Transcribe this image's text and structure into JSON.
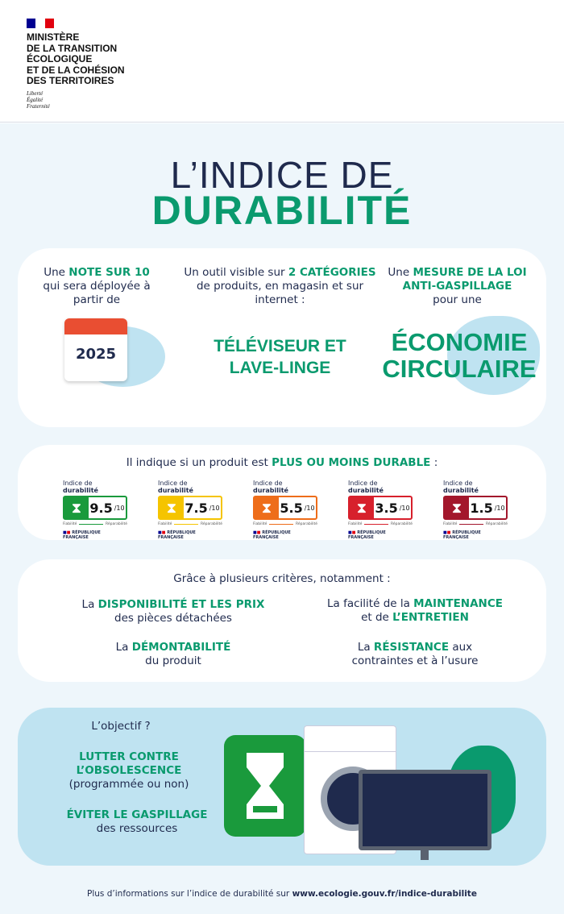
{
  "header": {
    "flag_colors": [
      "#000091",
      "#ffffff",
      "#e1000f"
    ],
    "ministry": [
      "MINISTÈRE",
      "DE LA TRANSITION",
      "ÉCOLOGIQUE",
      "ET DE LA COHÉSION",
      "DES TERRITOIRES"
    ],
    "motto": [
      "Liberté",
      "Égalité",
      "Fraternité"
    ]
  },
  "title": {
    "line1": "L’INDICE DE",
    "line2": "DURABILITÉ"
  },
  "card1": {
    "col1": {
      "pre": "Une ",
      "bold": "NOTE SUR 10",
      "rest": "qui sera déployée à partir de",
      "year": "2025"
    },
    "col2": {
      "pre": "Un outil visible sur ",
      "bold": "2 CATÉGORIES",
      "rest": "de produits, en magasin et sur internet :",
      "big1": "TÉLÉVISEUR ET",
      "big2": "LAVE-LINGE"
    },
    "col3": {
      "pre": "Une ",
      "bold": "MESURE DE LA LOI ANTI-GASPILLAGE",
      "rest": "pour une",
      "big1": "ÉCONOMIE",
      "big2": "CIRCULAIRE"
    }
  },
  "card2": {
    "pre": "Il indique si un produit est ",
    "bold": "PLUS OU MOINS DURABLE",
    "post": " :",
    "label_head_pre": "Indice de ",
    "label_head_bold": "durabilité",
    "out_of": "/10",
    "left": "Fiabilité",
    "right": "Réparabilité",
    "republic": "RÉPUBLIQUE FRANÇAISE",
    "labels": [
      {
        "score": "9.5",
        "color": "#1a9a3c"
      },
      {
        "score": "7.5",
        "color": "#f5c400"
      },
      {
        "score": "5.5",
        "color": "#ee6d1a"
      },
      {
        "score": "3.5",
        "color": "#d7202c"
      },
      {
        "score": "1.5",
        "color": "#a3172c"
      }
    ]
  },
  "card3": {
    "intro": "Grâce à plusieurs critères, notamment :",
    "c1": {
      "pre": "La ",
      "bold": "DISPONIBILITÉ ET LES PRIX",
      "rest": "des pièces détachées"
    },
    "c2": {
      "pre": "La facilité de la ",
      "bold": "MAINTENANCE",
      "mid": "et de ",
      "bold2": "L’ENTRETIEN"
    },
    "c3": {
      "pre": "La ",
      "bold": "DÉMONTABILITÉ",
      "rest": "du produit"
    },
    "c4": {
      "pre": "La ",
      "bold": "RÉSISTANCE",
      "post": " aux",
      "rest": "contraintes et à l’usure"
    }
  },
  "card4": {
    "q": "L’objectif ?",
    "b1": "LUTTER CONTRE",
    "b2": "L’OBSOLESCENCE",
    "p1": "(programmée ou non)",
    "b3": "ÉVITER LE GASPILLAGE",
    "p2": "des ressources"
  },
  "footer": {
    "text": "Plus d’informations sur l’indice de durabilité sur ",
    "link": "www.ecologie.gouv.fr/indice-durabilite"
  }
}
